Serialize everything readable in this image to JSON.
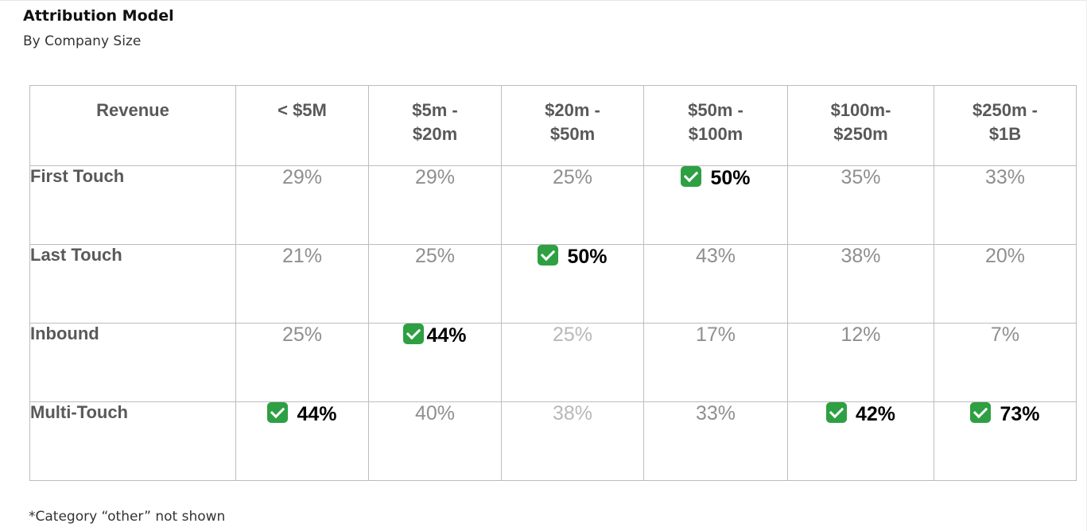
{
  "title": "Attribution Model",
  "subtitle": "By Company Size",
  "footnote": "*Category “other” not shown",
  "chart_data": {
    "type": "table",
    "title": "Attribution Model",
    "subtitle": "By Company Size",
    "corner_header": "Revenue",
    "columns": [
      {
        "line1": "< $5M",
        "line2": ""
      },
      {
        "line1": "$5m -",
        "line2": "$20m"
      },
      {
        "line1": "$20m -",
        "line2": "$50m"
      },
      {
        "line1": "$50m -",
        "line2": "$100m"
      },
      {
        "line1": "$100m-",
        "line2": "$250m"
      },
      {
        "line1": "$250m -",
        "line2": "$1B"
      }
    ],
    "rows": [
      {
        "label": "First Touch",
        "values": [
          "29%",
          "29%",
          "25%",
          "50%",
          "35%",
          "33%"
        ]
      },
      {
        "label": "Last Touch",
        "values": [
          "21%",
          "25%",
          "50%",
          "43%",
          "38%",
          "20%"
        ]
      },
      {
        "label": "Inbound",
        "values": [
          "25%",
          "44%",
          "25%",
          "17%",
          "12%",
          "7%"
        ]
      },
      {
        "label": "Multi-Touch",
        "values": [
          "44%",
          "40%",
          "38%",
          "33%",
          "42%",
          "73%"
        ]
      }
    ],
    "highlighted": [
      {
        "row": 0,
        "col": 3
      },
      {
        "row": 1,
        "col": 2
      },
      {
        "row": 2,
        "col": 1
      },
      {
        "row": 3,
        "col": 0
      },
      {
        "row": 3,
        "col": 4
      },
      {
        "row": 3,
        "col": 5
      }
    ],
    "highlight_icon": "green-checkmark-icon",
    "colors": {
      "header_text": "#595959",
      "value_text": "#8f8f8f",
      "highlight_text": "#000000",
      "check": "#2ea043",
      "border": "#bdbdbd"
    }
  }
}
